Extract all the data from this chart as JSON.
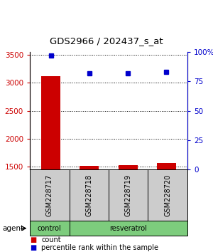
{
  "title": "GDS2966 / 202437_s_at",
  "samples": [
    "GSM228717",
    "GSM228718",
    "GSM228719",
    "GSM228720"
  ],
  "count_values": [
    3120,
    1510,
    1530,
    1560
  ],
  "percentile_values": [
    97,
    82,
    82,
    83
  ],
  "ylim_left": [
    1450,
    3550
  ],
  "ylim_right": [
    0,
    100
  ],
  "yticks_left": [
    1500,
    2000,
    2500,
    3000,
    3500
  ],
  "yticks_right": [
    0,
    25,
    50,
    75,
    100
  ],
  "bar_color": "#cc0000",
  "dot_color": "#0000cc",
  "sample_box_color": "#cccccc",
  "group_box_color": "#7dcc7d",
  "agent_label": "agent",
  "legend_count_label": "count",
  "legend_pct_label": "percentile rank within the sample",
  "bar_width": 0.5,
  "x_positions": [
    0,
    1,
    2,
    3
  ]
}
